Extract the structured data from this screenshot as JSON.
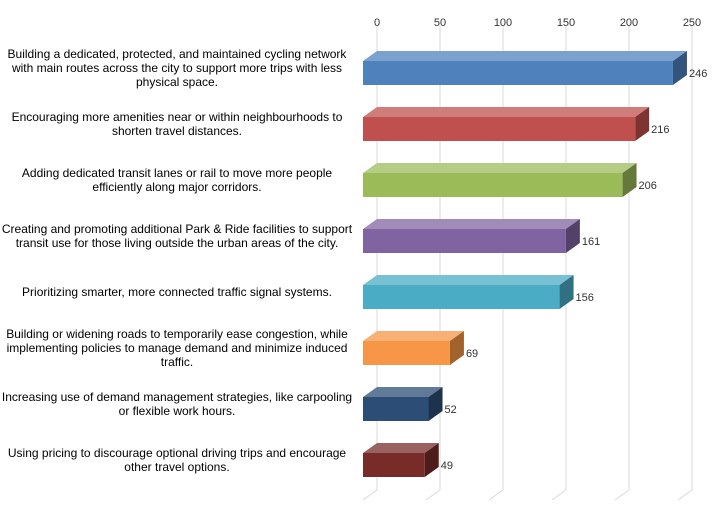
{
  "chart_data": {
    "type": "bar",
    "orientation": "horizontal",
    "categories": [
      "Building a dedicated, protected, and maintained cycling network with main routes across the city to support more trips with less physical space.",
      "Encouraging more amenities near or within neighbourhoods to shorten travel distances.",
      "Adding dedicated transit lanes or rail to move more people efficiently along major corridors.",
      "Creating and promoting additional Park & Ride facilities to support transit use for those living outside the urban areas of the city.",
      "Prioritizing smarter, more connected traffic signal systems.",
      "Building or widening roads to temporarily ease congestion, while implementing policies to manage demand and minimize induced traffic.",
      "Increasing use of demand management strategies, like carpooling or flexible work hours.",
      "Using pricing to discourage optional driving trips and encourage other travel options."
    ],
    "values": [
      246,
      216,
      206,
      161,
      156,
      69,
      52,
      49
    ],
    "value_labels": [
      "246",
      "216",
      "206",
      "161",
      "156",
      "69",
      "52",
      "49"
    ],
    "colors": [
      "#4f81bd",
      "#c0504d",
      "#9bbb59",
      "#8064a2",
      "#4bacc6",
      "#f79646",
      "#2c4d75",
      "#772c2a"
    ],
    "xlim": [
      0,
      250
    ],
    "xticks": [
      "0",
      "50",
      "100",
      "150",
      "200",
      "250"
    ],
    "axis_position": "top",
    "grid": true,
    "style": "3d"
  }
}
